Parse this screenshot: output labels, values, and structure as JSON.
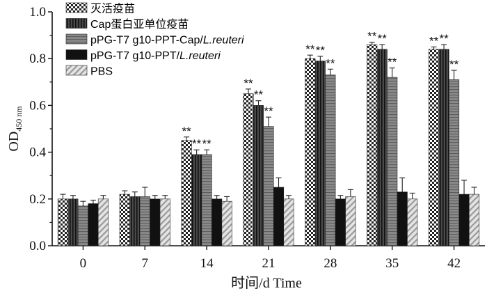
{
  "chart_data": {
    "type": "bar",
    "title": "",
    "ylabel": "OD",
    "ylabel_sub": "450 nm",
    "xlabel": "时间/d Time",
    "ylim": [
      0,
      1.0
    ],
    "yticks": [
      "0.0",
      "0.2",
      "0.4",
      "0.6",
      "0.8",
      "1.0"
    ],
    "categories": [
      "0",
      "7",
      "14",
      "21",
      "28",
      "35",
      "42"
    ],
    "legend_position": "top-left",
    "series": [
      {
        "name": "灭活疫苗",
        "name_suffix": "",
        "pattern": "checker",
        "values": [
          0.2,
          0.22,
          0.45,
          0.65,
          0.8,
          0.86,
          0.84
        ],
        "errors": [
          0.02,
          0.015,
          0.015,
          0.02,
          0.015,
          0.01,
          0.01
        ],
        "sig": [
          "",
          "",
          "**",
          "**",
          "**",
          "**",
          "**"
        ]
      },
      {
        "name": "Cap蛋白亚单位疫苗",
        "name_suffix": "",
        "pattern": "vertical",
        "values": [
          0.2,
          0.21,
          0.39,
          0.6,
          0.79,
          0.84,
          0.84
        ],
        "errors": [
          0.015,
          0.02,
          0.02,
          0.02,
          0.02,
          0.02,
          0.02
        ],
        "sig": [
          "",
          "",
          "**",
          "**",
          "**",
          "**",
          "**"
        ]
      },
      {
        "name": "pPG-T7 g10-PPT-Cap/",
        "name_suffix": "L.reuteri",
        "pattern": "horizontal",
        "values": [
          0.17,
          0.21,
          0.39,
          0.51,
          0.73,
          0.72,
          0.71
        ],
        "errors": [
          0.02,
          0.04,
          0.02,
          0.04,
          0.025,
          0.04,
          0.04
        ],
        "sig": [
          "",
          "",
          "**",
          "**",
          "**",
          "**",
          "**"
        ]
      },
      {
        "name": "pPG-T7 g10-PPT/",
        "name_suffix": "L.reuteri",
        "pattern": "solid",
        "values": [
          0.18,
          0.2,
          0.2,
          0.25,
          0.2,
          0.23,
          0.22
        ],
        "errors": [
          0.015,
          0.015,
          0.015,
          0.04,
          0.015,
          0.06,
          0.06
        ],
        "sig": [
          "",
          "",
          "",
          "",
          "",
          "",
          ""
        ]
      },
      {
        "name": "PBS",
        "name_suffix": "",
        "pattern": "diagonal",
        "values": [
          0.2,
          0.2,
          0.19,
          0.2,
          0.21,
          0.2,
          0.22
        ],
        "errors": [
          0.015,
          0.015,
          0.02,
          0.015,
          0.03,
          0.025,
          0.03
        ],
        "sig": [
          "",
          "",
          "",
          "",
          "",
          "",
          ""
        ]
      }
    ]
  }
}
